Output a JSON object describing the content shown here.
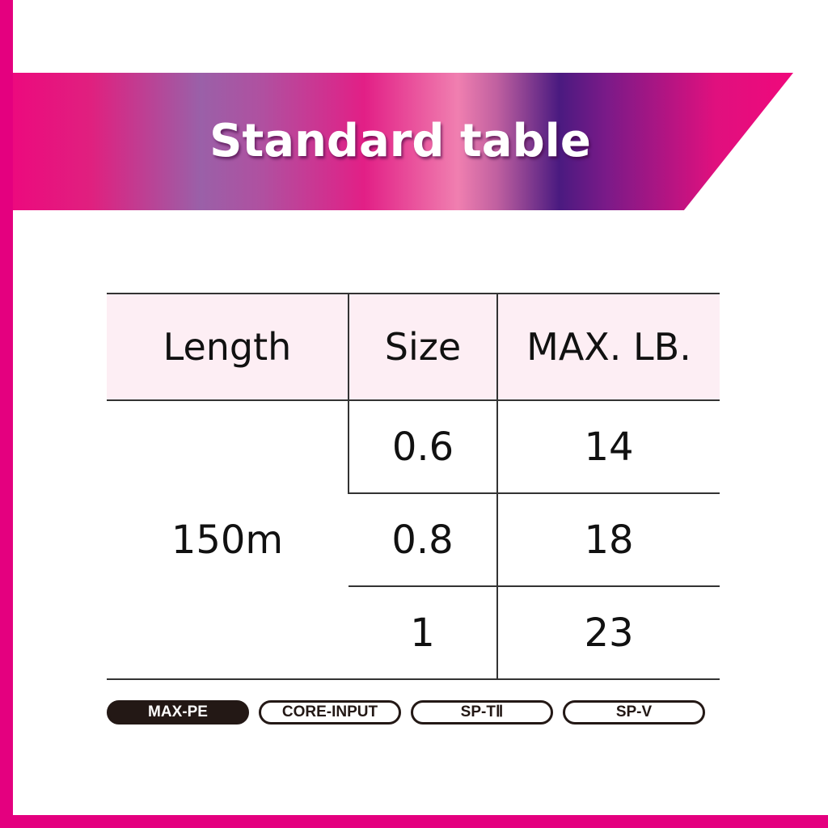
{
  "title": "Standard table",
  "colors": {
    "accent": "#e4007f",
    "header_bg": "#fdeef4"
  },
  "table": {
    "headers": [
      "Length",
      "Size",
      "MAX. LB."
    ],
    "length": "150m",
    "rows": [
      {
        "size": "0.6",
        "max_lb": "14"
      },
      {
        "size": "0.8",
        "max_lb": "18"
      },
      {
        "size": "1",
        "max_lb": "23"
      }
    ]
  },
  "tags": [
    {
      "label": "MAX-PE",
      "active": true
    },
    {
      "label": "CORE-INPUT",
      "active": false
    },
    {
      "label": "SP-TⅡ",
      "active": false
    },
    {
      "label": "SP-V",
      "active": false
    }
  ]
}
